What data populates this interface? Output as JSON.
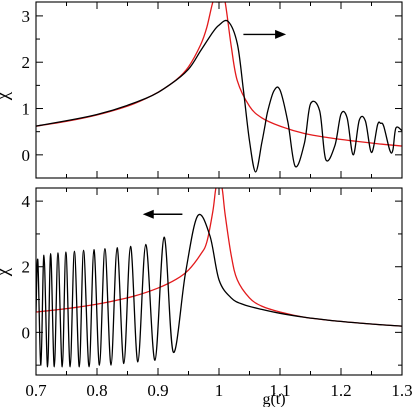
{
  "chart_data": [
    {
      "type": "line",
      "panel": "top",
      "xlabel": "",
      "ylabel": "χ",
      "xlim": [
        0.7,
        1.3
      ],
      "ylim": [
        -0.5,
        3.3
      ],
      "xticks": [
        0.7,
        0.8,
        0.9,
        1.0,
        1.1,
        1.2,
        1.3
      ],
      "yticks": [
        0,
        1,
        2,
        3
      ],
      "ytick_labels": [
        "0",
        "1",
        "2",
        "3"
      ],
      "annotations": [
        {
          "type": "arrow",
          "direction": "right",
          "from": [
            1.04,
            2.6
          ],
          "to": [
            1.11,
            2.6
          ]
        }
      ],
      "series": [
        {
          "color": "#e31a1c",
          "style": "solid",
          "x": [
            0.7,
            0.74,
            0.78,
            0.82,
            0.86,
            0.9,
            0.93,
            0.95,
            0.97,
            0.98,
            0.99,
            0.995,
            1.0,
            1.005,
            1.01,
            1.02,
            1.03,
            1.05,
            1.07,
            1.1,
            1.14,
            1.18,
            1.22,
            1.26,
            1.3
          ],
          "y": [
            0.62,
            0.7,
            0.8,
            0.93,
            1.1,
            1.35,
            1.62,
            1.9,
            2.38,
            2.75,
            3.3,
            3.3,
            3.3,
            3.3,
            3.3,
            2.35,
            1.6,
            1.05,
            0.8,
            0.62,
            0.46,
            0.37,
            0.3,
            0.24,
            0.19
          ]
        },
        {
          "color": "#000000",
          "style": "solid",
          "x": [
            0.7,
            0.8,
            0.88,
            0.92,
            0.95,
            0.97,
            0.99,
            1.0,
            1.015,
            1.03,
            1.04,
            1.05,
            1.06,
            1.07,
            1.075,
            1.08,
            1.09,
            1.1,
            1.113,
            1.125,
            1.14,
            1.15,
            1.165,
            1.175,
            1.19,
            1.2,
            1.21,
            1.22,
            1.23,
            1.24,
            1.25,
            1.26,
            1.265,
            1.27,
            1.28,
            1.285,
            1.29,
            1.3
          ],
          "y": [
            0.62,
            0.87,
            1.22,
            1.52,
            1.85,
            2.25,
            2.65,
            2.8,
            2.88,
            2.4,
            1.4,
            0.3,
            -0.37,
            0.25,
            0.6,
            0.95,
            1.38,
            1.4,
            0.7,
            -0.25,
            0.25,
            1.1,
            0.95,
            -0.1,
            0.2,
            0.88,
            0.8,
            0.0,
            0.75,
            0.73,
            0.05,
            0.65,
            0.68,
            0.62,
            0.1,
            0.1,
            0.58,
            0.52
          ]
        }
      ]
    },
    {
      "type": "line",
      "panel": "bottom",
      "xlabel": "g(t)",
      "ylabel": "χ",
      "xlim": [
        0.7,
        1.3
      ],
      "ylim": [
        -1.3,
        4.4
      ],
      "xticks": [
        0.7,
        0.8,
        0.9,
        1.0,
        1.1,
        1.2,
        1.3
      ],
      "xtick_labels": [
        "0.7",
        "0.8",
        "0.9",
        "1",
        "1.1",
        "1.2",
        "1.3"
      ],
      "yticks": [
        0,
        2,
        4
      ],
      "ytick_labels": [
        "0",
        "2",
        "4"
      ],
      "annotations": [
        {
          "type": "arrow",
          "direction": "left",
          "from": [
            0.94,
            3.6
          ],
          "to": [
            0.875,
            3.6
          ]
        }
      ],
      "series": [
        {
          "color": "#e31a1c",
          "style": "solid",
          "x": [
            0.7,
            0.74,
            0.78,
            0.82,
            0.86,
            0.9,
            0.93,
            0.95,
            0.97,
            0.98,
            0.99,
            0.995,
            1.0,
            1.005,
            1.01,
            1.02,
            1.03,
            1.05,
            1.07,
            1.1,
            1.14,
            1.18,
            1.22,
            1.26,
            1.3
          ],
          "y": [
            0.62,
            0.7,
            0.8,
            0.93,
            1.1,
            1.35,
            1.62,
            1.9,
            2.38,
            2.75,
            3.7,
            4.4,
            4.4,
            4.4,
            3.6,
            2.35,
            1.6,
            1.05,
            0.8,
            0.62,
            0.46,
            0.37,
            0.3,
            0.24,
            0.19
          ]
        },
        {
          "color": "#000000",
          "style": "solid",
          "x": [
            0.7,
            0.703,
            0.708,
            0.713,
            0.719,
            0.724,
            0.73,
            0.736,
            0.743,
            0.749,
            0.756,
            0.763,
            0.771,
            0.778,
            0.787,
            0.795,
            0.804,
            0.813,
            0.823,
            0.833,
            0.844,
            0.855,
            0.867,
            0.88,
            0.895,
            0.91,
            0.925,
            0.945,
            0.965,
            0.985,
            1.0,
            1.02,
            1.04,
            1.07,
            1.1,
            1.14,
            1.18,
            1.22,
            1.26,
            1.3
          ],
          "y": [
            0.62,
            2.2,
            -1.0,
            2.35,
            -1.05,
            2.4,
            -1.05,
            2.42,
            -1.05,
            2.45,
            -1.05,
            2.47,
            -1.05,
            2.5,
            -1.05,
            2.52,
            -1.0,
            2.55,
            -1.0,
            2.58,
            -0.95,
            2.62,
            -0.9,
            2.68,
            -0.85,
            2.9,
            -0.6,
            1.8,
            3.55,
            2.95,
            1.6,
            1.05,
            0.85,
            0.7,
            0.58,
            0.46,
            0.37,
            0.3,
            0.24,
            0.19
          ]
        }
      ]
    }
  ]
}
